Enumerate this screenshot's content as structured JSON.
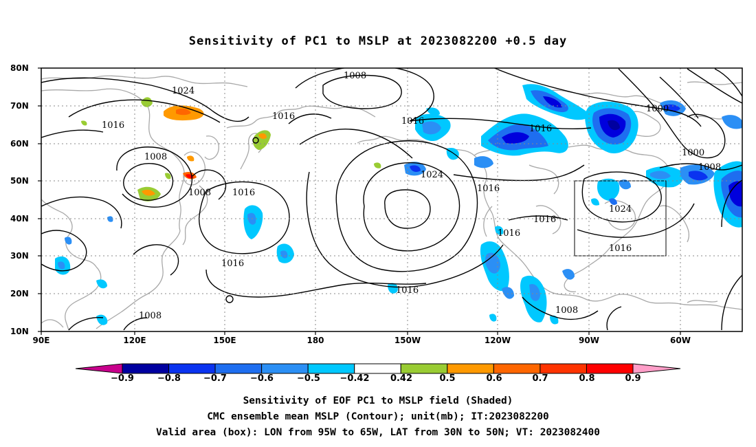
{
  "title": "Sensitivity of PC1 to MSLP at 2023082200 +0.5 day",
  "lat_labels": [
    "80N",
    "70N",
    "60N",
    "50N",
    "40N",
    "30N",
    "20N",
    "10N"
  ],
  "lon_labels": [
    "90E",
    "120E",
    "150E",
    "180",
    "150W",
    "120W",
    "90W",
    "60W"
  ],
  "contour_labels": {
    "l1008_top": "1008",
    "l1024_nw": "1024",
    "l1016_a": "1016",
    "l1016_b": "1016",
    "l1008_a": "1008",
    "l1008_b": "1008",
    "l1016_c": "1016",
    "l1016_d": "1016",
    "l1016_e": "1016",
    "l1024_high": "1024",
    "l1016_f": "1016",
    "l1016_g": "1016",
    "l1016_h": "1016",
    "l1016_i": "1016",
    "l1000_a": "1000",
    "l1000_b": "1000",
    "l1008_c": "1008",
    "l1024_box": "1024",
    "l1016_box": "1016",
    "l1016_j": "1016",
    "l1008_d": "1008",
    "l1008_e": "1008"
  },
  "colorbar": {
    "colors": [
      "#0000a0",
      "#0000dd",
      "#0a33f0",
      "#1e6ef0",
      "#2b8ff5",
      "#00c8ff",
      "#ffffff",
      "#99cc33",
      "#ff9900",
      "#ff6600",
      "#ff3300",
      "#ff0000"
    ],
    "left_arrow_color": "#c8008c",
    "right_arrow_color": "#ff9ec8",
    "labels": [
      "−0.9",
      "−0.8",
      "−0.7",
      "−0.6",
      "−0.5",
      "−0.42",
      "0.42",
      "0.5",
      "0.6",
      "0.7",
      "0.8",
      "0.9"
    ]
  },
  "captions": {
    "line1": "Sensitivity of EOF PC1 to MSLP field (Shaded)",
    "line2": "CMC ensemble mean MSLP (Contour); unit(mb); IT:2023082200",
    "line3": "Valid area (box): LON from 95W to 65W, LAT from 30N to 50N; VT: 2023082400"
  }
}
